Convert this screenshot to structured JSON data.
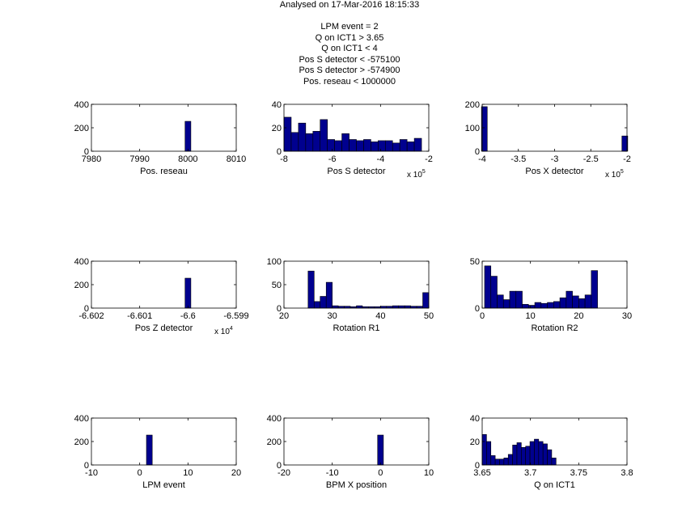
{
  "figure": {
    "title_lines": [
      "Analysed on 17-Mar-2016 18:15:33",
      "",
      "LPM event = 2",
      "Q on ICT1 > 3.65",
      "Q on ICT1 < 4",
      "Pos S detector < -575100",
      "Pos S detector > -574900",
      "Pos. reseau < 1000000"
    ],
    "colors": {
      "bar_fill": "#00008F",
      "bar_edge": "#000000",
      "axes": "#000000"
    }
  },
  "chart_data": [
    {
      "type": "bar",
      "panel": "top-left",
      "xlabel": "Pos. reseau",
      "xlim": [
        7980,
        8010
      ],
      "ylim": [
        0,
        400
      ],
      "xticks": [
        7980,
        7990,
        8000,
        8010
      ],
      "xtick_labels": [
        "7980",
        "7990",
        "8000",
        "8010"
      ],
      "yticks": [
        0,
        200,
        400
      ],
      "ytick_labels": [
        "0",
        "200",
        "400"
      ],
      "exponent": "",
      "bars": [
        {
          "x": 8000,
          "width": 1.2,
          "value": 255
        }
      ]
    },
    {
      "type": "bar",
      "panel": "top-middle",
      "xlabel": "Pos S detector",
      "xlim": [
        -8,
        -2
      ],
      "ylim": [
        0,
        40
      ],
      "xticks": [
        -8,
        -6,
        -4,
        -2
      ],
      "xtick_labels": [
        "-8",
        "-6",
        "-4",
        "-2"
      ],
      "yticks": [
        0,
        20,
        40
      ],
      "ytick_labels": [
        "0",
        "20",
        "40"
      ],
      "exponent": "x 10^5",
      "bin_start": -8,
      "bin_width": 0.3,
      "values": [
        29,
        16,
        24,
        15,
        17,
        27,
        10,
        9,
        15,
        10,
        9,
        10,
        8,
        9,
        9,
        7,
        10,
        8,
        11
      ]
    },
    {
      "type": "bar",
      "panel": "top-right",
      "xlabel": "Pos X detector",
      "xlim": [
        -4,
        -2
      ],
      "ylim": [
        0,
        200
      ],
      "xticks": [
        -4,
        -3.5,
        -3,
        -2.5,
        -2
      ],
      "xtick_labels": [
        "-4",
        "-3.5",
        "-3",
        "-2.5",
        "-2"
      ],
      "yticks": [
        0,
        100,
        200
      ],
      "ytick_labels": [
        "0",
        "100",
        "200"
      ],
      "exponent": "x 10^5",
      "bars": [
        {
          "x": -3.97,
          "width": 0.08,
          "value": 190
        },
        {
          "x": -2.03,
          "width": 0.08,
          "value": 65
        }
      ]
    },
    {
      "type": "bar",
      "panel": "middle-left",
      "xlabel": "Pos Z detector",
      "xlim": [
        -6.602,
        -6.599
      ],
      "ylim": [
        0,
        400
      ],
      "xticks": [
        -6.602,
        -6.601,
        -6.6,
        -6.599
      ],
      "xtick_labels": [
        "-6.602",
        "-6.601",
        "-6.6",
        "-6.599"
      ],
      "yticks": [
        0,
        200,
        400
      ],
      "ytick_labels": [
        "0",
        "200",
        "400"
      ],
      "exponent": "x 10^4",
      "bars": [
        {
          "x": -6.6,
          "width": 0.00012,
          "value": 255
        }
      ]
    },
    {
      "type": "bar",
      "panel": "middle-center",
      "xlabel": "Rotation R1",
      "xlim": [
        20,
        50
      ],
      "ylim": [
        0,
        100
      ],
      "xticks": [
        20,
        30,
        40,
        50
      ],
      "xtick_labels": [
        "20",
        "30",
        "40",
        "50"
      ],
      "yticks": [
        0,
        50,
        100
      ],
      "ytick_labels": [
        "0",
        "50",
        "100"
      ],
      "exponent": "",
      "bin_start": 25,
      "bin_width": 1.25,
      "values": [
        79,
        14,
        25,
        55,
        5,
        4,
        4,
        3,
        5,
        3,
        3,
        3,
        4,
        4,
        5,
        5,
        5,
        4,
        4,
        33
      ]
    },
    {
      "type": "bar",
      "panel": "middle-right",
      "xlabel": "Rotation R2",
      "xlim": [
        0,
        30
      ],
      "ylim": [
        0,
        50
      ],
      "xticks": [
        0,
        10,
        20,
        30
      ],
      "xtick_labels": [
        "0",
        "10",
        "20",
        "30"
      ],
      "yticks": [
        0,
        50
      ],
      "ytick_labels": [
        "0",
        "50"
      ],
      "exponent": "",
      "bin_start": 0.5,
      "bin_width": 1.3,
      "values": [
        45,
        34,
        14,
        9,
        18,
        18,
        4,
        3,
        6,
        5,
        6,
        7,
        11,
        18,
        13,
        10,
        14,
        40
      ]
    },
    {
      "type": "bar",
      "panel": "bottom-left",
      "xlabel": "LPM event",
      "xlim": [
        -10,
        20
      ],
      "ylim": [
        0,
        400
      ],
      "xticks": [
        -10,
        0,
        10,
        20
      ],
      "xtick_labels": [
        "-10",
        "0",
        "10",
        "20"
      ],
      "yticks": [
        0,
        200,
        400
      ],
      "ytick_labels": [
        "0",
        "200",
        "400"
      ],
      "exponent": "",
      "bars": [
        {
          "x": 2,
          "width": 1.2,
          "value": 255
        }
      ]
    },
    {
      "type": "bar",
      "panel": "bottom-center",
      "xlabel": "BPM X position",
      "xlim": [
        -20,
        10
      ],
      "ylim": [
        0,
        400
      ],
      "xticks": [
        -20,
        -10,
        0,
        10
      ],
      "xtick_labels": [
        "-20",
        "-10",
        "0",
        "10"
      ],
      "yticks": [
        0,
        200,
        400
      ],
      "ytick_labels": [
        "0",
        "200",
        "400"
      ],
      "exponent": "",
      "bars": [
        {
          "x": 0,
          "width": 1.2,
          "value": 255
        }
      ]
    },
    {
      "type": "bar",
      "panel": "bottom-right",
      "xlabel": "Q on ICT1",
      "xlim": [
        3.65,
        3.8
      ],
      "ylim": [
        0,
        40
      ],
      "xticks": [
        3.65,
        3.7,
        3.75,
        3.8
      ],
      "xtick_labels": [
        "3.65",
        "3.7",
        "3.75",
        "3.8"
      ],
      "yticks": [
        0,
        20,
        40
      ],
      "ytick_labels": [
        "0",
        "20",
        "40"
      ],
      "exponent": "",
      "bin_start": 3.65,
      "bin_width": 0.0045,
      "values": [
        26,
        20,
        8,
        5,
        5,
        6,
        9,
        17,
        19,
        15,
        16,
        20,
        22,
        20,
        18,
        13,
        6
      ]
    }
  ]
}
